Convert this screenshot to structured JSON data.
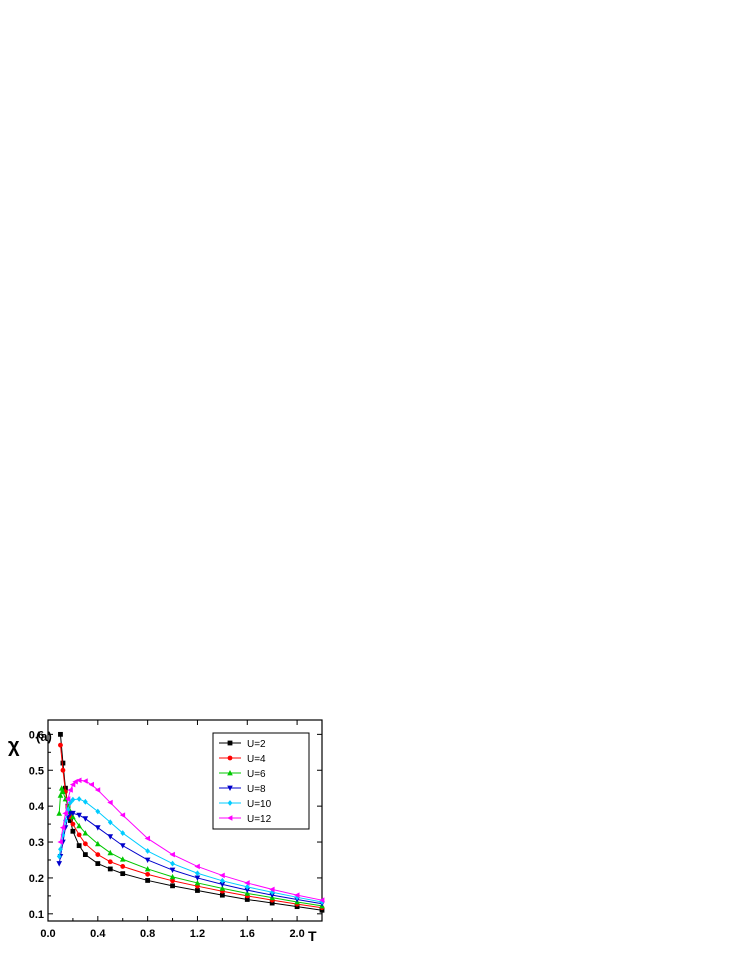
{
  "chart_data": {
    "type": "line",
    "panel_label": "(a)",
    "xlabel": "T",
    "ylabel": "χ",
    "xlim": [
      0.0,
      2.2
    ],
    "ylim": [
      0.08,
      0.64
    ],
    "xticks": [
      0.0,
      0.4,
      0.8,
      1.2,
      1.6,
      2.0
    ],
    "xtick_labels": [
      "0.0",
      "0.4",
      "0.8",
      "1.2",
      "1.6",
      "2.0"
    ],
    "yticks": [
      0.1,
      0.2,
      0.3,
      0.4,
      0.5,
      0.6
    ],
    "ytick_labels": [
      "0.1",
      "0.2",
      "0.3",
      "0.4",
      "0.5",
      "0.6"
    ],
    "legend_position": "top-right",
    "series": [
      {
        "name": "U=2",
        "color": "#000000",
        "marker": "square",
        "x": [
          0.1,
          0.12,
          0.14,
          0.16,
          0.18,
          0.2,
          0.25,
          0.3,
          0.4,
          0.5,
          0.6,
          0.8,
          1.0,
          1.2,
          1.4,
          1.6,
          1.8,
          2.0,
          2.2
        ],
        "y": [
          0.6,
          0.52,
          0.45,
          0.4,
          0.36,
          0.33,
          0.29,
          0.265,
          0.24,
          0.225,
          0.212,
          0.193,
          0.178,
          0.165,
          0.152,
          0.14,
          0.13,
          0.12,
          0.11
        ]
      },
      {
        "name": "U=4",
        "color": "#ff0000",
        "marker": "circle",
        "x": [
          0.1,
          0.12,
          0.14,
          0.16,
          0.18,
          0.2,
          0.25,
          0.3,
          0.4,
          0.5,
          0.6,
          0.8,
          1.0,
          1.2,
          1.4,
          1.6,
          1.8,
          2.0,
          2.2
        ],
        "y": [
          0.57,
          0.5,
          0.44,
          0.4,
          0.37,
          0.35,
          0.32,
          0.295,
          0.265,
          0.245,
          0.232,
          0.21,
          0.192,
          0.177,
          0.163,
          0.15,
          0.138,
          0.127,
          0.117
        ]
      },
      {
        "name": "U=6",
        "color": "#00c800",
        "marker": "triangle-up",
        "x": [
          0.09,
          0.1,
          0.11,
          0.12,
          0.14,
          0.16,
          0.18,
          0.2,
          0.25,
          0.3,
          0.4,
          0.5,
          0.6,
          0.8,
          1.0,
          1.2,
          1.4,
          1.6,
          1.8,
          2.0,
          2.2
        ],
        "y": [
          0.38,
          0.43,
          0.45,
          0.44,
          0.42,
          0.4,
          0.385,
          0.37,
          0.345,
          0.325,
          0.295,
          0.27,
          0.252,
          0.225,
          0.203,
          0.186,
          0.171,
          0.157,
          0.145,
          0.133,
          0.122
        ]
      },
      {
        "name": "U=8",
        "color": "#0000cc",
        "marker": "triangle-down",
        "x": [
          0.09,
          0.1,
          0.12,
          0.14,
          0.16,
          0.18,
          0.2,
          0.25,
          0.3,
          0.4,
          0.5,
          0.6,
          0.8,
          1.0,
          1.2,
          1.4,
          1.6,
          1.8,
          2.0,
          2.2
        ],
        "y": [
          0.24,
          0.26,
          0.3,
          0.34,
          0.37,
          0.38,
          0.38,
          0.375,
          0.365,
          0.34,
          0.315,
          0.29,
          0.25,
          0.222,
          0.2,
          0.182,
          0.166,
          0.152,
          0.14,
          0.128
        ]
      },
      {
        "name": "U=10",
        "color": "#00ccff",
        "marker": "diamond",
        "x": [
          0.09,
          0.1,
          0.12,
          0.14,
          0.16,
          0.18,
          0.2,
          0.25,
          0.3,
          0.4,
          0.5,
          0.6,
          0.8,
          1.0,
          1.2,
          1.4,
          1.6,
          1.8,
          2.0,
          2.2
        ],
        "y": [
          0.26,
          0.28,
          0.32,
          0.36,
          0.39,
          0.41,
          0.418,
          0.42,
          0.412,
          0.385,
          0.355,
          0.325,
          0.275,
          0.24,
          0.213,
          0.192,
          0.175,
          0.16,
          0.146,
          0.133
        ]
      },
      {
        "name": "U=12",
        "color": "#ff00ff",
        "marker": "triangle-left",
        "x": [
          0.1,
          0.12,
          0.14,
          0.16,
          0.18,
          0.2,
          0.22,
          0.25,
          0.3,
          0.35,
          0.4,
          0.5,
          0.6,
          0.8,
          1.0,
          1.2,
          1.4,
          1.6,
          1.8,
          2.0,
          2.2
        ],
        "y": [
          0.3,
          0.34,
          0.38,
          0.42,
          0.445,
          0.46,
          0.468,
          0.472,
          0.47,
          0.46,
          0.445,
          0.41,
          0.375,
          0.31,
          0.265,
          0.232,
          0.207,
          0.186,
          0.168,
          0.152,
          0.138
        ]
      }
    ]
  }
}
